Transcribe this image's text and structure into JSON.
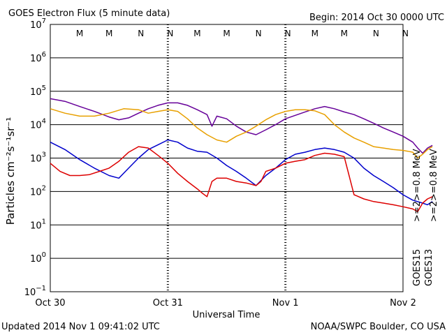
{
  "header": {
    "title": "GOES Electron Flux (5 minute data)",
    "begin": "Begin: 2014 Oct 30 0000 UTC"
  },
  "footer": {
    "updated": "Updated 2014 Nov  1 09:41:02 UTC",
    "credit": "NOAA/SWPC Boulder, CO USA"
  },
  "chart_data": {
    "type": "line",
    "title": "GOES Electron Flux (5 minute data)",
    "xlabel": "Universal Time",
    "ylabel": "Particles cm⁻²s⁻¹sr⁻¹",
    "y_scale": "log",
    "ylim": [
      0.1,
      10000000
    ],
    "xlim": [
      "2014-10-30 00:00",
      "2014-11-02 00:00"
    ],
    "x_tick_labels": [
      "Oct 30",
      "Oct 31",
      "Nov 1",
      "Nov 2"
    ],
    "y_tick_labels": [
      {
        "mant": "10",
        "exp": "7"
      },
      {
        "mant": "10",
        "exp": "6"
      },
      {
        "mant": "10",
        "exp": "5"
      },
      {
        "mant": "10",
        "exp": "4"
      },
      {
        "mant": "10",
        "exp": "3"
      },
      {
        "mant": "10",
        "exp": "2"
      },
      {
        "mant": "10",
        "exp": "1"
      },
      {
        "mant": "10",
        "exp": "0"
      },
      {
        "mant": "10",
        "exp": "−1"
      }
    ],
    "grid": true,
    "threshold": 1000,
    "noon_midnight_markers": [
      {
        "label": "M",
        "hour": 6,
        "color": "#dd0000"
      },
      {
        "label": "M",
        "hour": 12,
        "color": "#0000cc"
      },
      {
        "label": "N",
        "hour": 18.5,
        "color": "#dd0000"
      },
      {
        "label": "N",
        "hour": 24.5,
        "color": "#0000cc"
      },
      {
        "label": "M",
        "hour": 30,
        "color": "#dd0000"
      },
      {
        "label": "M",
        "hour": 36,
        "color": "#0000cc"
      },
      {
        "label": "N",
        "hour": 42.5,
        "color": "#dd0000"
      },
      {
        "label": "N",
        "hour": 48.5,
        "color": "#0000cc"
      },
      {
        "label": "M",
        "hour": 54,
        "color": "#dd0000"
      },
      {
        "label": "M",
        "hour": 60,
        "color": "#0000cc"
      },
      {
        "label": "N",
        "hour": 66.5,
        "color": "#dd0000"
      },
      {
        "label": "N",
        "hour": 72.5,
        "color": "#0000cc"
      }
    ],
    "legend": {
      "position": "right-side vertical",
      "groups": [
        {
          "satellite": "GOES15",
          "entries": [
            {
              "text": ">=2",
              "color": "#0000cc"
            },
            {
              "text": ">=0.8 MeV",
              "color": "#660099"
            }
          ]
        },
        {
          "satellite": "GOES13",
          "entries": [
            {
              "text": ">=2",
              "color": "#dd0000"
            },
            {
              "text": ">=0.8 MeV",
              "color": "#e8a000"
            }
          ]
        }
      ]
    },
    "series": [
      {
        "name": "GOES15 >=0.8 MeV",
        "color": "#660099",
        "points": [
          [
            0,
            60000
          ],
          [
            3,
            50000
          ],
          [
            6,
            35000
          ],
          [
            9,
            25000
          ],
          [
            12,
            17000
          ],
          [
            14,
            14000
          ],
          [
            16,
            16000
          ],
          [
            18,
            22000
          ],
          [
            20,
            30000
          ],
          [
            22,
            38000
          ],
          [
            24,
            45000
          ],
          [
            26,
            45000
          ],
          [
            28,
            38000
          ],
          [
            30,
            28000
          ],
          [
            32,
            20000
          ],
          [
            33,
            9000
          ],
          [
            34,
            18000
          ],
          [
            36,
            15000
          ],
          [
            38,
            9000
          ],
          [
            40,
            6000
          ],
          [
            42,
            5000
          ],
          [
            44,
            7000
          ],
          [
            46,
            10000
          ],
          [
            48,
            15000
          ],
          [
            50,
            19000
          ],
          [
            52,
            24000
          ],
          [
            54,
            30000
          ],
          [
            56,
            35000
          ],
          [
            58,
            30000
          ],
          [
            60,
            24000
          ],
          [
            62,
            20000
          ],
          [
            64,
            15000
          ],
          [
            66,
            11000
          ],
          [
            68,
            8000
          ],
          [
            70,
            6000
          ],
          [
            72,
            4500
          ],
          [
            74,
            3000
          ],
          [
            75,
            2000
          ],
          [
            76,
            1400
          ],
          [
            77,
            2000
          ],
          [
            78,
            2400
          ]
        ]
      },
      {
        "name": "GOES13 >=0.8 MeV",
        "color": "#e8a000",
        "points": [
          [
            0,
            30000
          ],
          [
            3,
            22000
          ],
          [
            6,
            18000
          ],
          [
            9,
            18000
          ],
          [
            12,
            22000
          ],
          [
            15,
            30000
          ],
          [
            18,
            28000
          ],
          [
            20,
            22000
          ],
          [
            22,
            25000
          ],
          [
            24,
            28000
          ],
          [
            26,
            25000
          ],
          [
            28,
            15000
          ],
          [
            30,
            8000
          ],
          [
            32,
            5000
          ],
          [
            34,
            3500
          ],
          [
            36,
            3000
          ],
          [
            38,
            4500
          ],
          [
            40,
            6000
          ],
          [
            42,
            9000
          ],
          [
            44,
            14000
          ],
          [
            46,
            20000
          ],
          [
            48,
            25000
          ],
          [
            50,
            28000
          ],
          [
            52,
            28000
          ],
          [
            54,
            26000
          ],
          [
            56,
            20000
          ],
          [
            58,
            10000
          ],
          [
            60,
            6000
          ],
          [
            62,
            4000
          ],
          [
            64,
            3000
          ],
          [
            66,
            2200
          ],
          [
            68,
            2000
          ],
          [
            70,
            1800
          ],
          [
            72,
            1700
          ],
          [
            73,
            1600
          ],
          [
            74,
            1500
          ],
          [
            75,
            1000
          ],
          [
            76,
            1300
          ],
          [
            77,
            1800
          ],
          [
            78,
            2200
          ]
        ]
      },
      {
        "name": "GOES15 >=2",
        "color": "#0000cc",
        "points": [
          [
            0,
            3000
          ],
          [
            3,
            1800
          ],
          [
            6,
            900
          ],
          [
            9,
            500
          ],
          [
            12,
            300
          ],
          [
            14,
            250
          ],
          [
            16,
            500
          ],
          [
            18,
            1000
          ],
          [
            20,
            1800
          ],
          [
            22,
            2500
          ],
          [
            24,
            3500
          ],
          [
            26,
            3000
          ],
          [
            28,
            2000
          ],
          [
            30,
            1600
          ],
          [
            32,
            1500
          ],
          [
            34,
            1000
          ],
          [
            36,
            600
          ],
          [
            38,
            400
          ],
          [
            40,
            250
          ],
          [
            42,
            150
          ],
          [
            44,
            300
          ],
          [
            46,
            500
          ],
          [
            48,
            900
          ],
          [
            50,
            1300
          ],
          [
            52,
            1500
          ],
          [
            54,
            1800
          ],
          [
            56,
            2000
          ],
          [
            58,
            1800
          ],
          [
            60,
            1500
          ],
          [
            62,
            1000
          ],
          [
            64,
            500
          ],
          [
            66,
            300
          ],
          [
            68,
            200
          ],
          [
            70,
            130
          ],
          [
            72,
            80
          ],
          [
            74,
            55
          ],
          [
            76,
            45
          ],
          [
            77,
            40
          ],
          [
            78,
            50
          ]
        ]
      },
      {
        "name": "GOES13 >=2",
        "color": "#dd0000",
        "points": [
          [
            0,
            700
          ],
          [
            2,
            400
          ],
          [
            4,
            300
          ],
          [
            6,
            300
          ],
          [
            8,
            320
          ],
          [
            10,
            400
          ],
          [
            12,
            500
          ],
          [
            14,
            800
          ],
          [
            16,
            1500
          ],
          [
            18,
            2200
          ],
          [
            20,
            2000
          ],
          [
            22,
            1200
          ],
          [
            24,
            700
          ],
          [
            26,
            350
          ],
          [
            28,
            200
          ],
          [
            30,
            120
          ],
          [
            31,
            90
          ],
          [
            32,
            70
          ],
          [
            33,
            200
          ],
          [
            34,
            250
          ],
          [
            36,
            250
          ],
          [
            38,
            200
          ],
          [
            40,
            180
          ],
          [
            42,
            150
          ],
          [
            43,
            200
          ],
          [
            44,
            400
          ],
          [
            46,
            500
          ],
          [
            48,
            700
          ],
          [
            50,
            800
          ],
          [
            52,
            900
          ],
          [
            54,
            1200
          ],
          [
            56,
            1400
          ],
          [
            58,
            1300
          ],
          [
            60,
            1100
          ],
          [
            61,
            300
          ],
          [
            62,
            80
          ],
          [
            64,
            60
          ],
          [
            66,
            50
          ],
          [
            68,
            45
          ],
          [
            70,
            40
          ],
          [
            72,
            35
          ],
          [
            74,
            30
          ],
          [
            75,
            25
          ],
          [
            76,
            45
          ],
          [
            77,
            60
          ],
          [
            78,
            70
          ]
        ]
      }
    ]
  }
}
